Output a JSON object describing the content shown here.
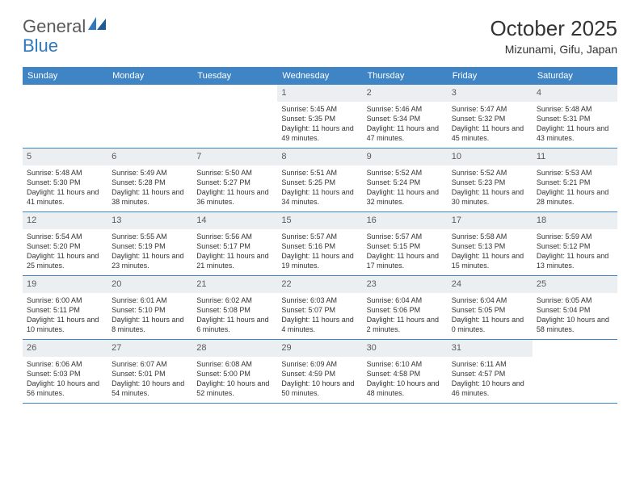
{
  "logo": {
    "text_general": "General",
    "text_blue": "Blue"
  },
  "title": "October 2025",
  "location": "Mizunami, Gifu, Japan",
  "colors": {
    "header_bg": "#3f85c6",
    "header_text": "#ffffff",
    "daynum_bg": "#eceff1",
    "text": "#333333",
    "logo_gray": "#5a5a5a",
    "logo_blue": "#2f78bd",
    "row_border": "#3f85c6",
    "background": "#ffffff"
  },
  "typography": {
    "title_fontsize": 26,
    "location_fontsize": 14,
    "dayhead_fontsize": 11,
    "daynum_fontsize": 11,
    "body_fontsize": 9
  },
  "day_headers": [
    "Sunday",
    "Monday",
    "Tuesday",
    "Wednesday",
    "Thursday",
    "Friday",
    "Saturday"
  ],
  "weeks": [
    [
      {
        "n": "",
        "sr": "",
        "ss": "",
        "dl": ""
      },
      {
        "n": "",
        "sr": "",
        "ss": "",
        "dl": ""
      },
      {
        "n": "",
        "sr": "",
        "ss": "",
        "dl": ""
      },
      {
        "n": "1",
        "sr": "Sunrise: 5:45 AM",
        "ss": "Sunset: 5:35 PM",
        "dl": "Daylight: 11 hours and 49 minutes."
      },
      {
        "n": "2",
        "sr": "Sunrise: 5:46 AM",
        "ss": "Sunset: 5:34 PM",
        "dl": "Daylight: 11 hours and 47 minutes."
      },
      {
        "n": "3",
        "sr": "Sunrise: 5:47 AM",
        "ss": "Sunset: 5:32 PM",
        "dl": "Daylight: 11 hours and 45 minutes."
      },
      {
        "n": "4",
        "sr": "Sunrise: 5:48 AM",
        "ss": "Sunset: 5:31 PM",
        "dl": "Daylight: 11 hours and 43 minutes."
      }
    ],
    [
      {
        "n": "5",
        "sr": "Sunrise: 5:48 AM",
        "ss": "Sunset: 5:30 PM",
        "dl": "Daylight: 11 hours and 41 minutes."
      },
      {
        "n": "6",
        "sr": "Sunrise: 5:49 AM",
        "ss": "Sunset: 5:28 PM",
        "dl": "Daylight: 11 hours and 38 minutes."
      },
      {
        "n": "7",
        "sr": "Sunrise: 5:50 AM",
        "ss": "Sunset: 5:27 PM",
        "dl": "Daylight: 11 hours and 36 minutes."
      },
      {
        "n": "8",
        "sr": "Sunrise: 5:51 AM",
        "ss": "Sunset: 5:25 PM",
        "dl": "Daylight: 11 hours and 34 minutes."
      },
      {
        "n": "9",
        "sr": "Sunrise: 5:52 AM",
        "ss": "Sunset: 5:24 PM",
        "dl": "Daylight: 11 hours and 32 minutes."
      },
      {
        "n": "10",
        "sr": "Sunrise: 5:52 AM",
        "ss": "Sunset: 5:23 PM",
        "dl": "Daylight: 11 hours and 30 minutes."
      },
      {
        "n": "11",
        "sr": "Sunrise: 5:53 AM",
        "ss": "Sunset: 5:21 PM",
        "dl": "Daylight: 11 hours and 28 minutes."
      }
    ],
    [
      {
        "n": "12",
        "sr": "Sunrise: 5:54 AM",
        "ss": "Sunset: 5:20 PM",
        "dl": "Daylight: 11 hours and 25 minutes."
      },
      {
        "n": "13",
        "sr": "Sunrise: 5:55 AM",
        "ss": "Sunset: 5:19 PM",
        "dl": "Daylight: 11 hours and 23 minutes."
      },
      {
        "n": "14",
        "sr": "Sunrise: 5:56 AM",
        "ss": "Sunset: 5:17 PM",
        "dl": "Daylight: 11 hours and 21 minutes."
      },
      {
        "n": "15",
        "sr": "Sunrise: 5:57 AM",
        "ss": "Sunset: 5:16 PM",
        "dl": "Daylight: 11 hours and 19 minutes."
      },
      {
        "n": "16",
        "sr": "Sunrise: 5:57 AM",
        "ss": "Sunset: 5:15 PM",
        "dl": "Daylight: 11 hours and 17 minutes."
      },
      {
        "n": "17",
        "sr": "Sunrise: 5:58 AM",
        "ss": "Sunset: 5:13 PM",
        "dl": "Daylight: 11 hours and 15 minutes."
      },
      {
        "n": "18",
        "sr": "Sunrise: 5:59 AM",
        "ss": "Sunset: 5:12 PM",
        "dl": "Daylight: 11 hours and 13 minutes."
      }
    ],
    [
      {
        "n": "19",
        "sr": "Sunrise: 6:00 AM",
        "ss": "Sunset: 5:11 PM",
        "dl": "Daylight: 11 hours and 10 minutes."
      },
      {
        "n": "20",
        "sr": "Sunrise: 6:01 AM",
        "ss": "Sunset: 5:10 PM",
        "dl": "Daylight: 11 hours and 8 minutes."
      },
      {
        "n": "21",
        "sr": "Sunrise: 6:02 AM",
        "ss": "Sunset: 5:08 PM",
        "dl": "Daylight: 11 hours and 6 minutes."
      },
      {
        "n": "22",
        "sr": "Sunrise: 6:03 AM",
        "ss": "Sunset: 5:07 PM",
        "dl": "Daylight: 11 hours and 4 minutes."
      },
      {
        "n": "23",
        "sr": "Sunrise: 6:04 AM",
        "ss": "Sunset: 5:06 PM",
        "dl": "Daylight: 11 hours and 2 minutes."
      },
      {
        "n": "24",
        "sr": "Sunrise: 6:04 AM",
        "ss": "Sunset: 5:05 PM",
        "dl": "Daylight: 11 hours and 0 minutes."
      },
      {
        "n": "25",
        "sr": "Sunrise: 6:05 AM",
        "ss": "Sunset: 5:04 PM",
        "dl": "Daylight: 10 hours and 58 minutes."
      }
    ],
    [
      {
        "n": "26",
        "sr": "Sunrise: 6:06 AM",
        "ss": "Sunset: 5:03 PM",
        "dl": "Daylight: 10 hours and 56 minutes."
      },
      {
        "n": "27",
        "sr": "Sunrise: 6:07 AM",
        "ss": "Sunset: 5:01 PM",
        "dl": "Daylight: 10 hours and 54 minutes."
      },
      {
        "n": "28",
        "sr": "Sunrise: 6:08 AM",
        "ss": "Sunset: 5:00 PM",
        "dl": "Daylight: 10 hours and 52 minutes."
      },
      {
        "n": "29",
        "sr": "Sunrise: 6:09 AM",
        "ss": "Sunset: 4:59 PM",
        "dl": "Daylight: 10 hours and 50 minutes."
      },
      {
        "n": "30",
        "sr": "Sunrise: 6:10 AM",
        "ss": "Sunset: 4:58 PM",
        "dl": "Daylight: 10 hours and 48 minutes."
      },
      {
        "n": "31",
        "sr": "Sunrise: 6:11 AM",
        "ss": "Sunset: 4:57 PM",
        "dl": "Daylight: 10 hours and 46 minutes."
      },
      {
        "n": "",
        "sr": "",
        "ss": "",
        "dl": ""
      }
    ]
  ]
}
